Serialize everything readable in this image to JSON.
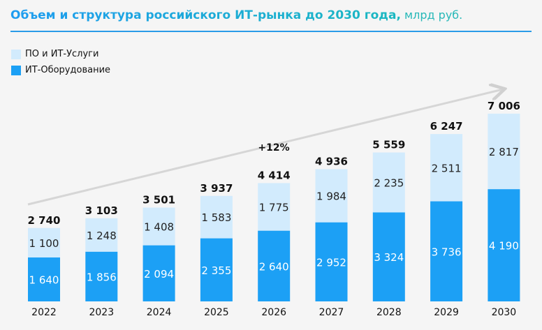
{
  "title": {
    "main": "Объем и структура российского ИТ-рынка до 2030 года,",
    "unit": " млрд руб."
  },
  "chart_data": {
    "type": "bar",
    "stacked": true,
    "categories": [
      "2022",
      "2023",
      "2024",
      "2025",
      "2026",
      "2027",
      "2028",
      "2029",
      "2030"
    ],
    "series": [
      {
        "name": "ИТ-Оборудование",
        "color": "#1ca0f5",
        "values": [
          1640,
          1856,
          2094,
          2355,
          2640,
          2952,
          3324,
          3736,
          4190
        ],
        "labels": [
          "1 640",
          "1 856",
          "2 094",
          "2 355",
          "2 640",
          "2 952",
          "3 324",
          "3 736",
          "4 190"
        ]
      },
      {
        "name": "ПО и ИТ-Услуги",
        "color": "#d2ebfd",
        "values": [
          1100,
          1248,
          1408,
          1583,
          1775,
          1984,
          2235,
          2511,
          2817
        ],
        "labels": [
          "1 100",
          "1 248",
          "1 408",
          "1 583",
          "1 775",
          "1 984",
          "2 235",
          "2 511",
          "2 817"
        ]
      }
    ],
    "totals": [
      2740,
      3103,
      3501,
      3937,
      4414,
      4936,
      5559,
      6247,
      7006
    ],
    "total_labels": [
      "2 740",
      "3 103",
      "3 501",
      "3 937",
      "4 414",
      "4 936",
      "5 559",
      "6 247",
      "7 006"
    ],
    "annotation": "+12%",
    "legend": [
      "ПО и ИТ-Услуги",
      "ИТ-Оборудование"
    ],
    "legend_position": "top-left",
    "grid": false
  }
}
